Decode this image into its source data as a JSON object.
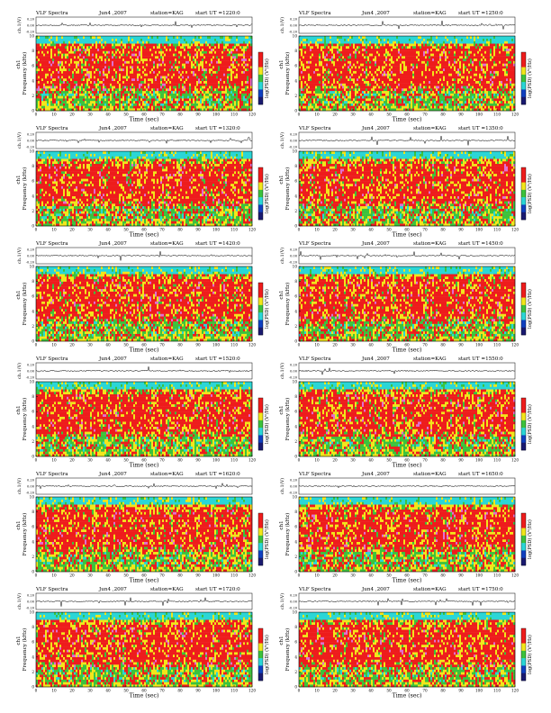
{
  "labels": {
    "x_axis": "Time  (sec)",
    "y_axis": "Frequency (kHz)",
    "waveform_axis": "ch.1(V)",
    "channel_label": "ch1",
    "colorbar": "log(PSD) (V²/Hz)"
  },
  "ticks": {
    "time": [
      "0",
      "10",
      "20",
      "30",
      "40",
      "50",
      "60",
      "70",
      "80",
      "90",
      "100",
      "110",
      "120"
    ],
    "freq": [
      "0",
      "2",
      "4",
      "6",
      "8",
      "10"
    ],
    "volt": [
      "0.20",
      "0.00",
      "-0.20"
    ]
  },
  "chart_data": [
    {
      "type": "heatmap",
      "title": "VLF Spectra",
      "date": "Jun4 ,2007",
      "station": "station=KAG",
      "start": "start  UT =1220:0",
      "xlim": [
        0,
        120
      ],
      "ylim": [
        0,
        10
      ]
    },
    {
      "type": "heatmap",
      "title": "VLF Spectra",
      "date": "Jun4 ,2007",
      "station": "station=KAG",
      "start": "start  UT =1250:0",
      "xlim": [
        0,
        120
      ],
      "ylim": [
        0,
        10
      ]
    },
    {
      "type": "heatmap",
      "title": "VLF Spectra",
      "date": "Jun4 ,2007",
      "station": "station=KAG",
      "start": "start  UT =1320:0",
      "xlim": [
        0,
        120
      ],
      "ylim": [
        0,
        10
      ]
    },
    {
      "type": "heatmap",
      "title": "VLF Spectra",
      "date": "Jun4 ,2007",
      "station": "station=KAG",
      "start": "start  UT =1350:0",
      "xlim": [
        0,
        120
      ],
      "ylim": [
        0,
        10
      ]
    },
    {
      "type": "heatmap",
      "title": "VLF Spectra",
      "date": "Jun4 ,2007",
      "station": "station=KAG",
      "start": "start  UT =1420:0",
      "xlim": [
        0,
        120
      ],
      "ylim": [
        0,
        10
      ]
    },
    {
      "type": "heatmap",
      "title": "VLF Spectra",
      "date": "Jun4 ,2007",
      "station": "station=KAG",
      "start": "start  UT =1450:0",
      "xlim": [
        0,
        120
      ],
      "ylim": [
        0,
        10
      ]
    },
    {
      "type": "heatmap",
      "title": "VLF Spectra",
      "date": "Jun4 ,2007",
      "station": "station=KAG",
      "start": "start  UT =1520:0",
      "xlim": [
        0,
        120
      ],
      "ylim": [
        0,
        10
      ]
    },
    {
      "type": "heatmap",
      "title": "VLF Spectra",
      "date": "Jun4 ,2007",
      "station": "station=KAG",
      "start": "start  UT =1550:0",
      "xlim": [
        0,
        120
      ],
      "ylim": [
        0,
        10
      ]
    },
    {
      "type": "heatmap",
      "title": "VLF Spectra",
      "date": "Jun4 ,2007",
      "station": "station=KAG",
      "start": "start  UT =1620:0",
      "xlim": [
        0,
        120
      ],
      "ylim": [
        0,
        10
      ]
    },
    {
      "type": "heatmap",
      "title": "VLF Spectra",
      "date": "Jun4 ,2007",
      "station": "station=KAG",
      "start": "start  UT =1650:0",
      "xlim": [
        0,
        120
      ],
      "ylim": [
        0,
        10
      ]
    },
    {
      "type": "heatmap",
      "title": "VLF Spectra",
      "date": "Jun4 ,2007",
      "station": "station=KAG",
      "start": "start  UT =1720:0",
      "xlim": [
        0,
        120
      ],
      "ylim": [
        0,
        10
      ]
    },
    {
      "type": "heatmap",
      "title": "VLF Spectra",
      "date": "Jun4 ,2007",
      "station": "station=KAG",
      "start": "start  UT =1750:0",
      "xlim": [
        0,
        120
      ],
      "ylim": [
        0,
        10
      ]
    }
  ],
  "colors": {
    "red": "#ee1c1c",
    "yellow": "#f2e61a",
    "green": "#3cc23c",
    "cyan": "#2ad6d6",
    "magenta": "#e070d0",
    "blue": "#1040c0"
  }
}
